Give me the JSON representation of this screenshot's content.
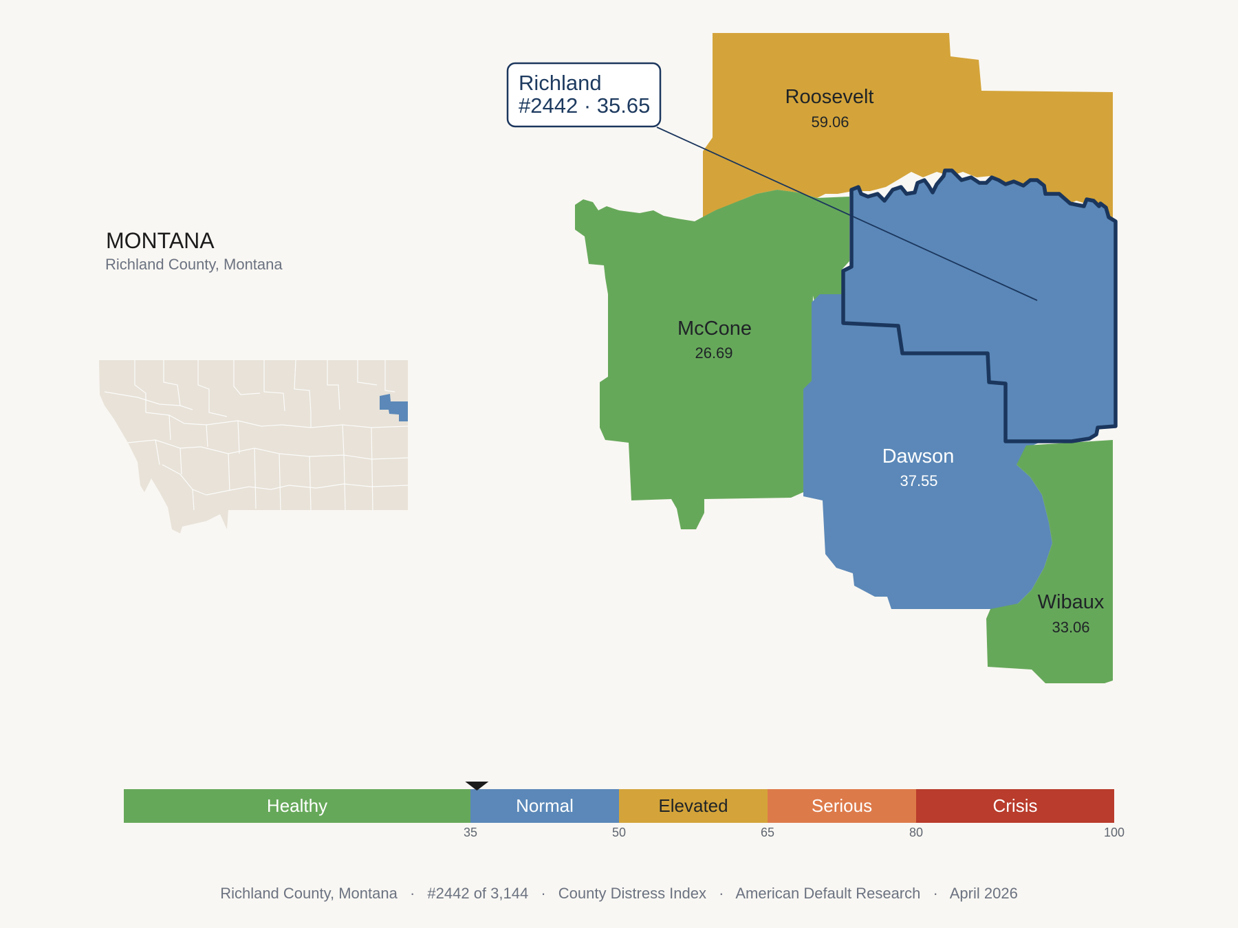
{
  "state": {
    "title": "MONTANA",
    "subtitle": "Richland County, Montana"
  },
  "callout": {
    "line1": "Richland",
    "line2": "#2442 · 35.65"
  },
  "counties": [
    {
      "id": "roosevelt",
      "name": "Roosevelt",
      "score": "59.06",
      "category": "Elevated"
    },
    {
      "id": "mccone",
      "name": "McCone",
      "score": "26.69",
      "category": "Healthy"
    },
    {
      "id": "dawson",
      "name": "Dawson",
      "score": "37.55",
      "category": "Normal"
    },
    {
      "id": "wibaux",
      "name": "Wibaux",
      "score": "33.06",
      "category": "Healthy"
    },
    {
      "id": "richland",
      "name": "Richland",
      "score": "35.65",
      "category": "Normal",
      "highlighted": true
    }
  ],
  "scale": {
    "min": 0,
    "max": 100,
    "marker_value": 35.65,
    "bands": [
      {
        "label": "Healthy",
        "from": 0,
        "to": 35,
        "color": "#66a85a"
      },
      {
        "label": "Normal",
        "from": 35,
        "to": 50,
        "color": "#5b88b8"
      },
      {
        "label": "Elevated",
        "from": 50,
        "to": 65,
        "color": "#d4a43a"
      },
      {
        "label": "Serious",
        "from": 65,
        "to": 80,
        "color": "#dd7a4a"
      },
      {
        "label": "Crisis",
        "from": 80,
        "to": 100,
        "color": "#b93c2c"
      }
    ],
    "ticks": [
      "35",
      "50",
      "65",
      "80",
      "100"
    ]
  },
  "footer": {
    "county": "Richland County, Montana",
    "rank": "#2442 of 3,144",
    "index": "County Distress Index",
    "source": "American Default Research",
    "date": "April 2026",
    "separator": "·"
  },
  "colors": {
    "background": "#f9f7f3",
    "highlight_outline": "#1b365d",
    "inset_land": "#e8e2d8",
    "inset_highlight": "#5b88b8"
  }
}
